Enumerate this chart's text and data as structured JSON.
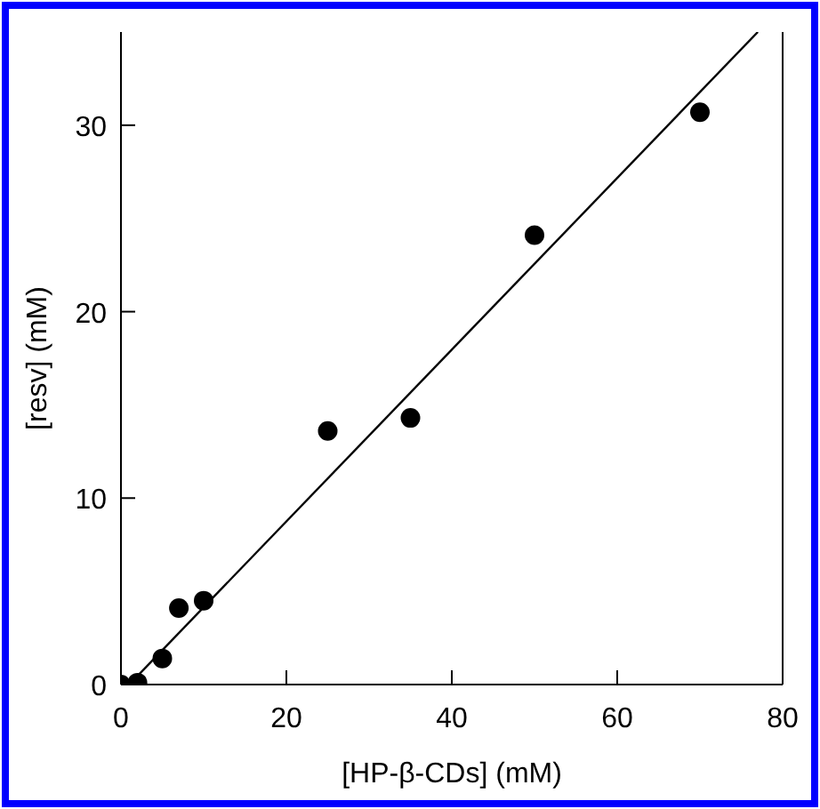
{
  "chart_data": {
    "type": "scatter",
    "xlabel": "[HP-β-CDs] (mM)",
    "ylabel": "[resv] (mM)",
    "xlim": [
      0,
      80
    ],
    "xticks": [
      0,
      20,
      40,
      60,
      80
    ],
    "ylim": [
      0,
      35
    ],
    "yticks": [
      0,
      10,
      20,
      30
    ],
    "grid": false,
    "marker": "circle",
    "series": [
      {
        "color": "#000000",
        "x": [
          0,
          2,
          5,
          7,
          10,
          25,
          35,
          50,
          70
        ],
        "values": [
          0,
          0.1,
          1.4,
          4.1,
          4.5,
          13.6,
          14.3,
          24.1,
          30.7
        ]
      },
      {
        "type": "line",
        "color": "#000000",
        "line_style": "solid",
        "marker": "none",
        "x": [
          1,
          77
        ],
        "values": [
          0,
          35
        ]
      }
    ]
  }
}
